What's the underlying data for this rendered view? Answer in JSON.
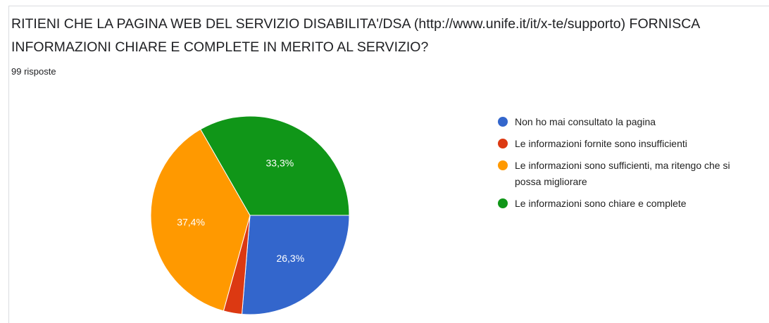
{
  "chart_data": {
    "type": "pie",
    "title": "RITIENI CHE LA PAGINA WEB DEL SERVIZIO DISABILITA'/DSA (http://www.unife.it/it/x-te/supporto) FORNISCA INFORMAZIONI CHIARE E COMPLETE IN MERITO AL SERVIZIO?",
    "subtitle": "99 risposte",
    "categories": [
      "Non ho mai consultato la pagina",
      "Le informazioni fornite sono insufficienti",
      "Le informazioni sono sufficienti, ma ritengo che si possa migliorare",
      "Le informazioni sono chiare e complete"
    ],
    "values": [
      26.3,
      3.0,
      37.4,
      33.3
    ],
    "value_labels": [
      "26,3%",
      null,
      "37,4%",
      "33,3%"
    ],
    "colors": [
      "#3366cc",
      "#dc3912",
      "#ff9900",
      "#109618"
    ],
    "legend": "right"
  }
}
